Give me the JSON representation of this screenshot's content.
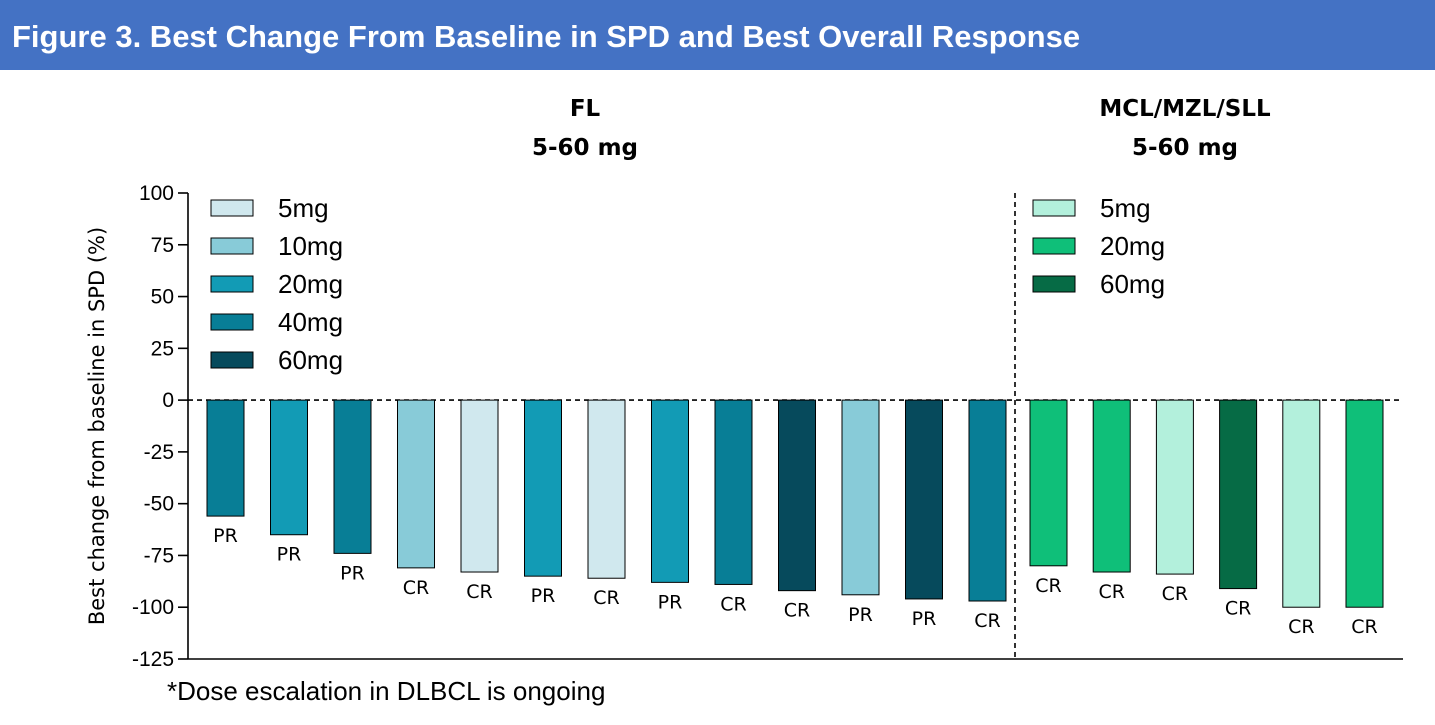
{
  "header": {
    "title": "Figure 3. Best Change From Baseline in SPD and Best Overall Response",
    "color": "#4472c4"
  },
  "footnote": "*Dose escalation in DLBCL is ongoing",
  "chart_data": {
    "type": "bar",
    "ylabel": "Best change from baseline  in SPD (%)",
    "ylim": [
      -125,
      100
    ],
    "yticks": [
      100,
      75,
      50,
      25,
      0,
      -25,
      -50,
      -75,
      -100,
      -125
    ],
    "reference_line": 0,
    "groups": [
      {
        "line1": "FL",
        "line2": "5-60 mg",
        "legend": [
          {
            "label": "5mg",
            "color": "#d0e8ee"
          },
          {
            "label": "10mg",
            "color": "#88cbd8"
          },
          {
            "label": "20mg",
            "color": "#129bb5"
          },
          {
            "label": "40mg",
            "color": "#087e96"
          },
          {
            "label": "60mg",
            "color": "#064a5c"
          }
        ],
        "bars": [
          {
            "value": -56,
            "dose": "40mg",
            "response": "PR"
          },
          {
            "value": -65,
            "dose": "20mg",
            "response": "PR"
          },
          {
            "value": -74,
            "dose": "40mg",
            "response": "PR"
          },
          {
            "value": -81,
            "dose": "10mg",
            "response": "CR"
          },
          {
            "value": -83,
            "dose": "5mg",
            "response": "CR"
          },
          {
            "value": -85,
            "dose": "20mg",
            "response": "PR"
          },
          {
            "value": -86,
            "dose": "5mg",
            "response": "CR"
          },
          {
            "value": -88,
            "dose": "20mg",
            "response": "PR"
          },
          {
            "value": -89,
            "dose": "40mg",
            "response": "CR"
          },
          {
            "value": -92,
            "dose": "60mg",
            "response": "CR"
          },
          {
            "value": -94,
            "dose": "10mg",
            "response": "PR"
          },
          {
            "value": -96,
            "dose": "60mg",
            "response": "PR"
          },
          {
            "value": -97,
            "dose": "40mg",
            "response": "CR"
          }
        ]
      },
      {
        "line1": "MCL/MZL/SLL",
        "line2": "5-60 mg",
        "legend": [
          {
            "label": "5mg",
            "color": "#b3f0dc"
          },
          {
            "label": "20mg",
            "color": "#0fbf79"
          },
          {
            "label": "60mg",
            "color": "#066b45"
          }
        ],
        "bars": [
          {
            "value": -80,
            "dose": "20mg",
            "response": "CR"
          },
          {
            "value": -83,
            "dose": "20mg",
            "response": "CR"
          },
          {
            "value": -84,
            "dose": "5mg",
            "response": "CR"
          },
          {
            "value": -91,
            "dose": "60mg",
            "response": "CR"
          },
          {
            "value": -100,
            "dose": "5mg",
            "response": "CR"
          },
          {
            "value": -100,
            "dose": "20mg",
            "response": "CR"
          }
        ]
      }
    ]
  }
}
